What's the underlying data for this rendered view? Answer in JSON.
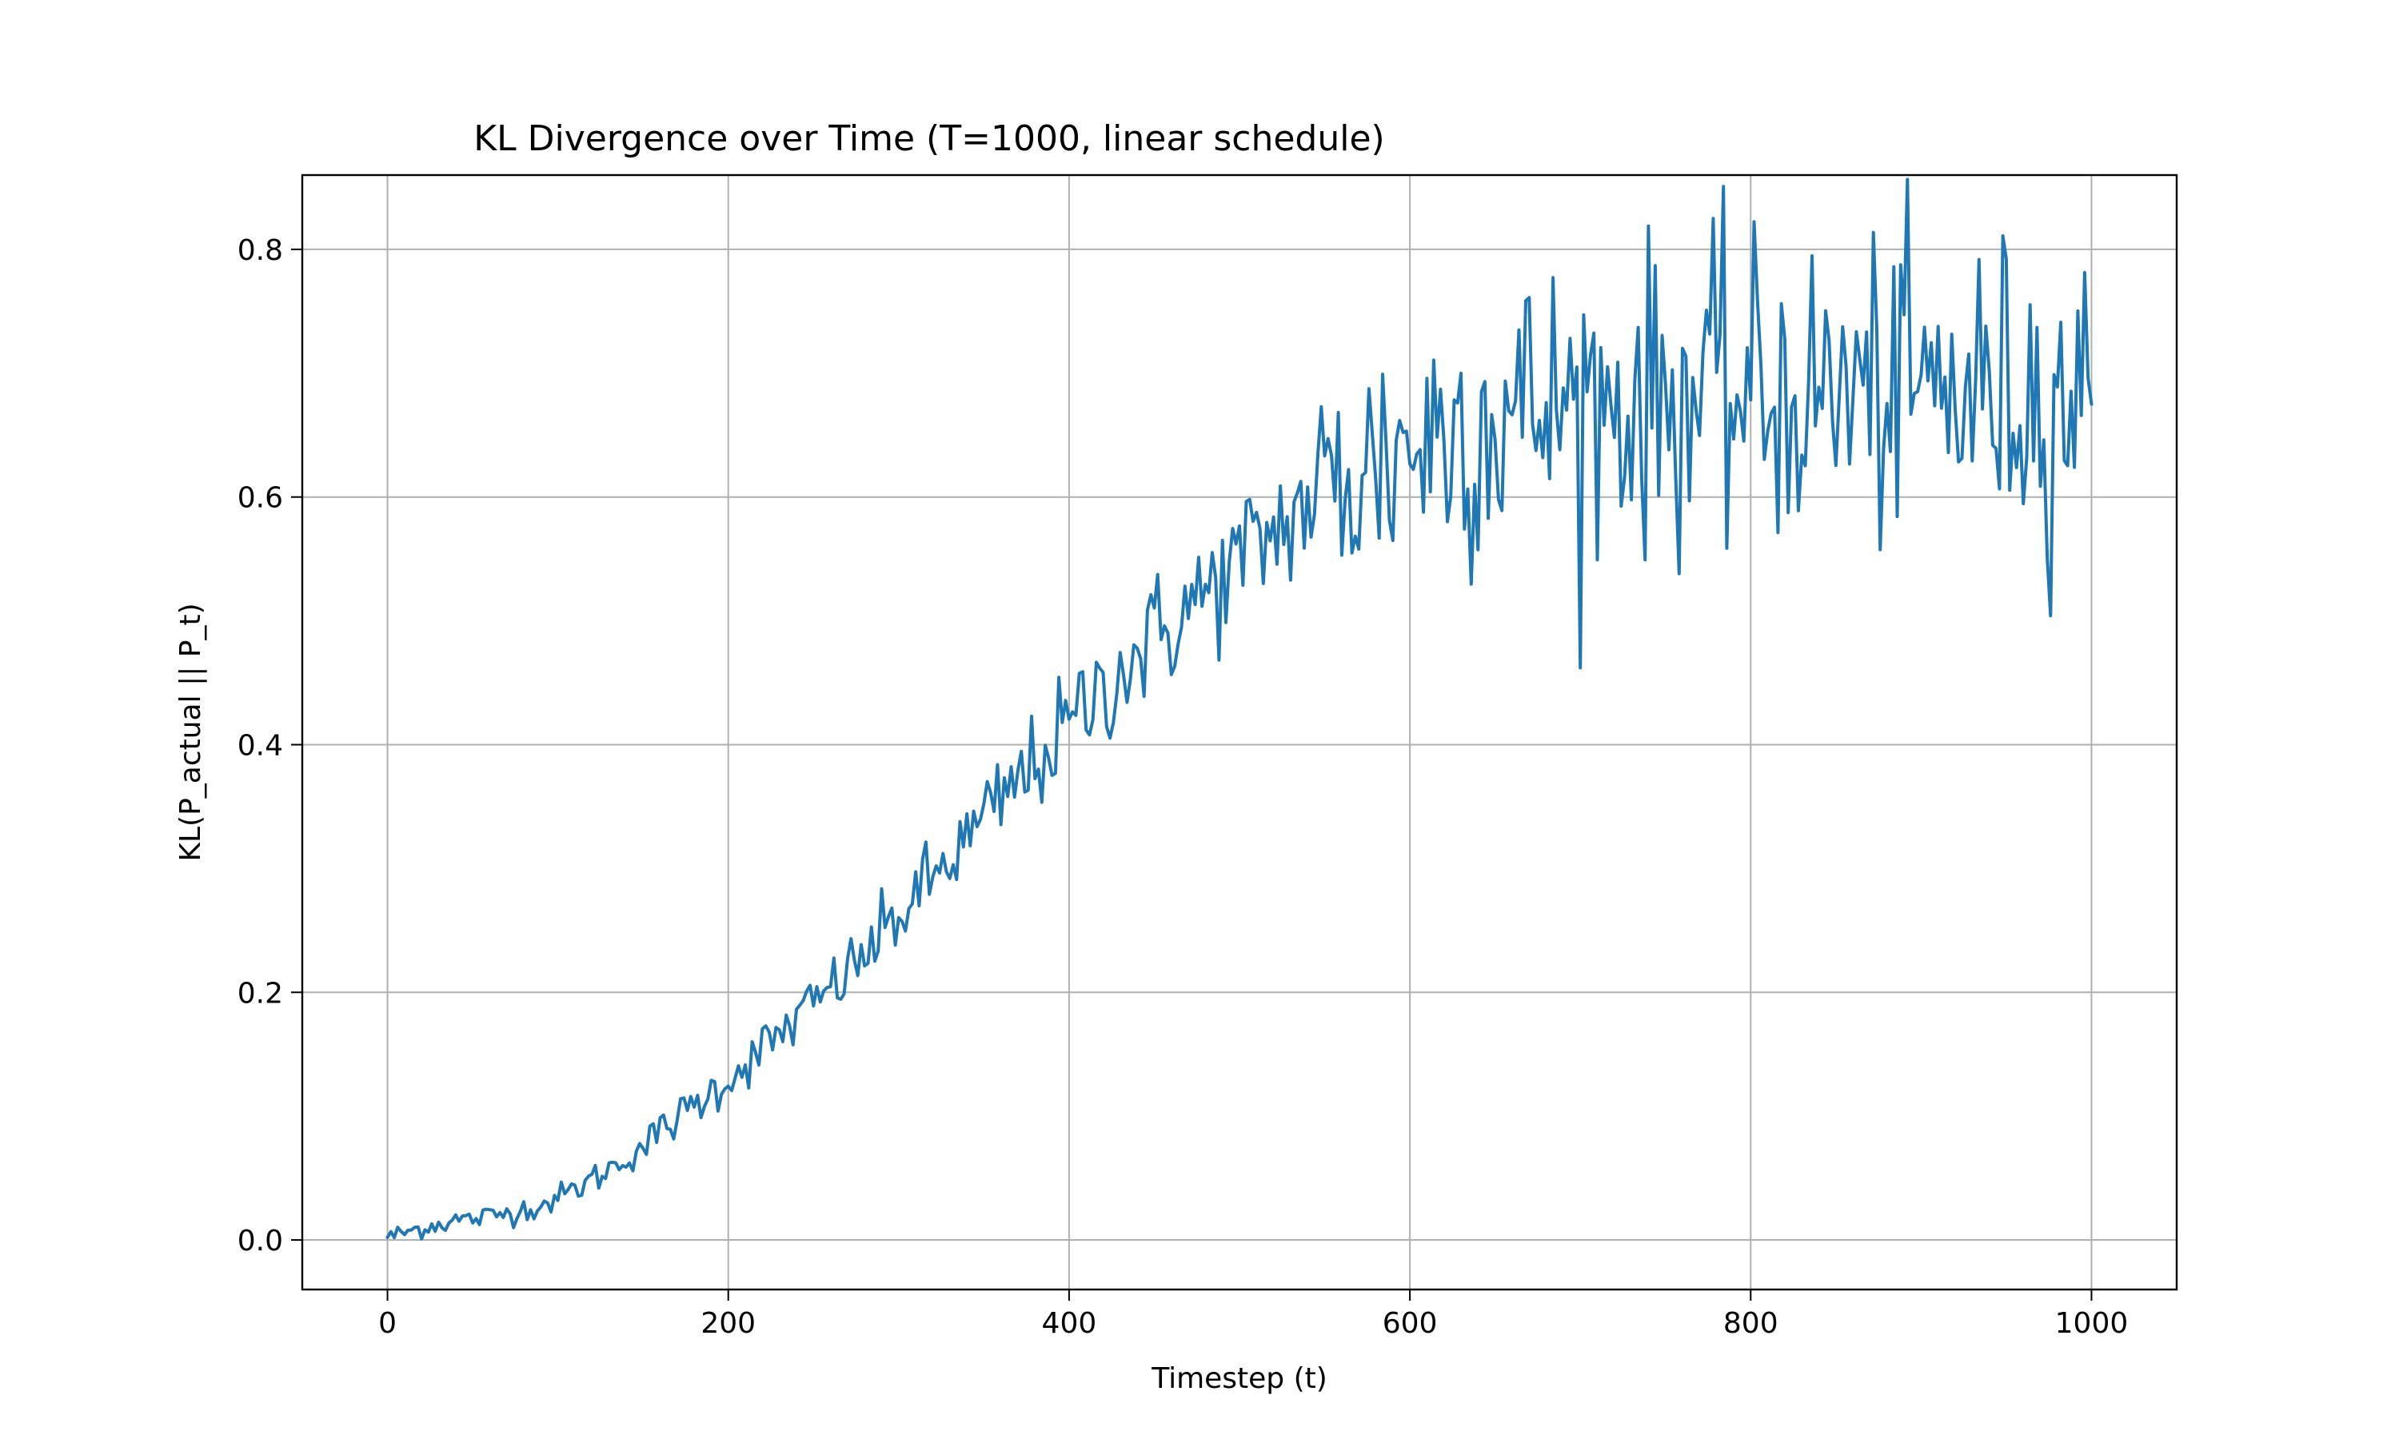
{
  "chart_data": {
    "type": "line",
    "title": "KL Divergence over Time (T=1000, linear schedule)",
    "xlabel": "Timestep (t)",
    "ylabel": "KL(P_actual || P_t)",
    "xlim": [
      -50,
      1050
    ],
    "ylim": [
      -0.04,
      0.86
    ],
    "xticks": [
      0,
      200,
      400,
      600,
      800,
      1000
    ],
    "yticks": [
      0.0,
      0.2,
      0.4,
      0.6,
      0.8
    ],
    "xtick_labels": [
      "0",
      "200",
      "400",
      "600",
      "800",
      "1000"
    ],
    "ytick_labels": [
      "0.0",
      "0.2",
      "0.4",
      "0.6",
      "0.8"
    ],
    "grid": true,
    "legend": "none",
    "series": [
      {
        "color": "#1f77b4",
        "x": [
          0,
          10,
          20,
          30,
          40,
          50,
          60,
          70,
          80,
          90,
          100,
          110,
          120,
          130,
          140,
          150,
          160,
          170,
          180,
          190,
          200,
          210,
          220,
          230,
          240,
          250,
          260,
          270,
          280,
          290,
          300,
          310,
          320,
          330,
          340,
          350,
          360,
          370,
          380,
          390,
          400,
          410,
          420,
          430,
          440,
          450,
          460,
          470,
          480,
          490,
          500,
          510,
          520,
          530,
          540,
          550,
          560,
          570,
          580,
          590,
          600,
          610,
          620,
          630,
          640,
          650,
          660,
          670,
          680,
          690,
          700,
          710,
          720,
          730,
          740,
          750,
          760,
          770,
          780,
          790,
          800,
          810,
          820,
          830,
          840,
          850,
          860,
          870,
          880,
          890,
          900,
          910,
          920,
          930,
          940,
          950,
          960,
          970,
          980,
          990,
          1000
        ],
        "y": [
          0.002,
          0.006,
          0.01,
          0.013,
          0.016,
          0.017,
          0.019,
          0.022,
          0.025,
          0.028,
          0.034,
          0.041,
          0.049,
          0.057,
          0.066,
          0.076,
          0.087,
          0.098,
          0.109,
          0.119,
          0.13,
          0.142,
          0.154,
          0.166,
          0.178,
          0.19,
          0.203,
          0.216,
          0.23,
          0.246,
          0.262,
          0.276,
          0.292,
          0.308,
          0.322,
          0.338,
          0.354,
          0.37,
          0.385,
          0.4,
          0.415,
          0.432,
          0.446,
          0.46,
          0.473,
          0.486,
          0.498,
          0.51,
          0.522,
          0.535,
          0.548,
          0.56,
          0.572,
          0.584,
          0.594,
          0.603,
          0.612,
          0.62,
          0.628,
          0.636,
          0.643,
          0.648,
          0.653,
          0.658,
          0.662,
          0.665,
          0.668,
          0.67,
          0.672,
          0.674,
          0.676,
          0.677,
          0.678,
          0.679,
          0.68,
          0.68,
          0.681,
          0.681,
          0.682,
          0.682,
          0.682,
          0.683,
          0.683,
          0.683,
          0.683,
          0.684,
          0.684,
          0.684,
          0.684,
          0.684,
          0.684,
          0.684,
          0.684,
          0.684,
          0.684,
          0.684,
          0.684,
          0.684,
          0.684,
          0.684,
          0.675
        ]
      }
    ]
  }
}
